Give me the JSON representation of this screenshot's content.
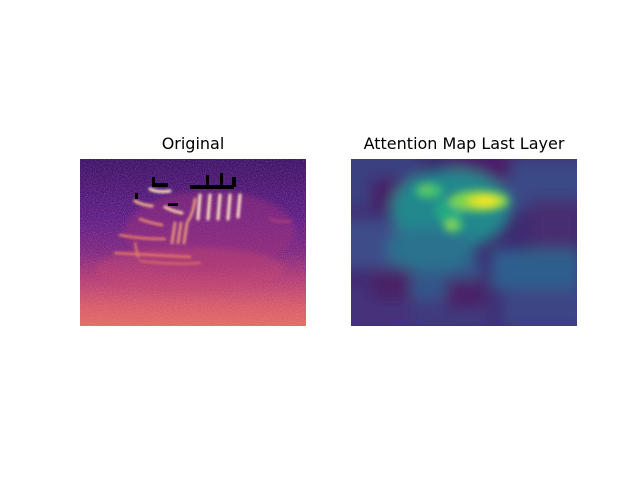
{
  "figure": {
    "panels": [
      {
        "title": "Original",
        "colormap": "magma",
        "colors": [
          "#2b0f57",
          "#5b1a86",
          "#9a2f7c",
          "#d2506b",
          "#f3875c",
          "#fdd0a2",
          "#000000"
        ]
      },
      {
        "title": "Attention Map Last Layer",
        "colormap": "viridis",
        "colors": [
          "#440154",
          "#3b528b",
          "#21908d",
          "#35b779",
          "#8fd744",
          "#fde725"
        ]
      }
    ]
  }
}
